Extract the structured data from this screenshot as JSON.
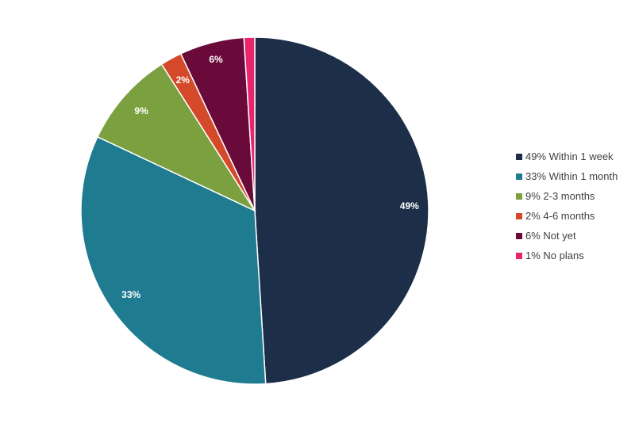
{
  "chart_data": {
    "type": "pie",
    "start": "12 o'clock, clockwise",
    "legend_position": "right",
    "slices": [
      {
        "legend": "49% Within 1 week",
        "label": "49%",
        "value": 49,
        "color": "#1c2e48"
      },
      {
        "legend": "33% Within 1 month",
        "label": "33%",
        "value": 33,
        "color": "#1e7b90"
      },
      {
        "legend": "9% 2-3 months",
        "label": "9%",
        "value": 9,
        "color": "#7ba03f"
      },
      {
        "legend": "2% 4-6 months",
        "label": "2%",
        "value": 2,
        "color": "#d4492a"
      },
      {
        "legend": "6% Not yet",
        "label": "6%",
        "value": 6,
        "color": "#6a0a3a"
      },
      {
        "legend": "1% No plans",
        "label": "1%",
        "value": 1,
        "color": "#e8246c"
      }
    ]
  }
}
